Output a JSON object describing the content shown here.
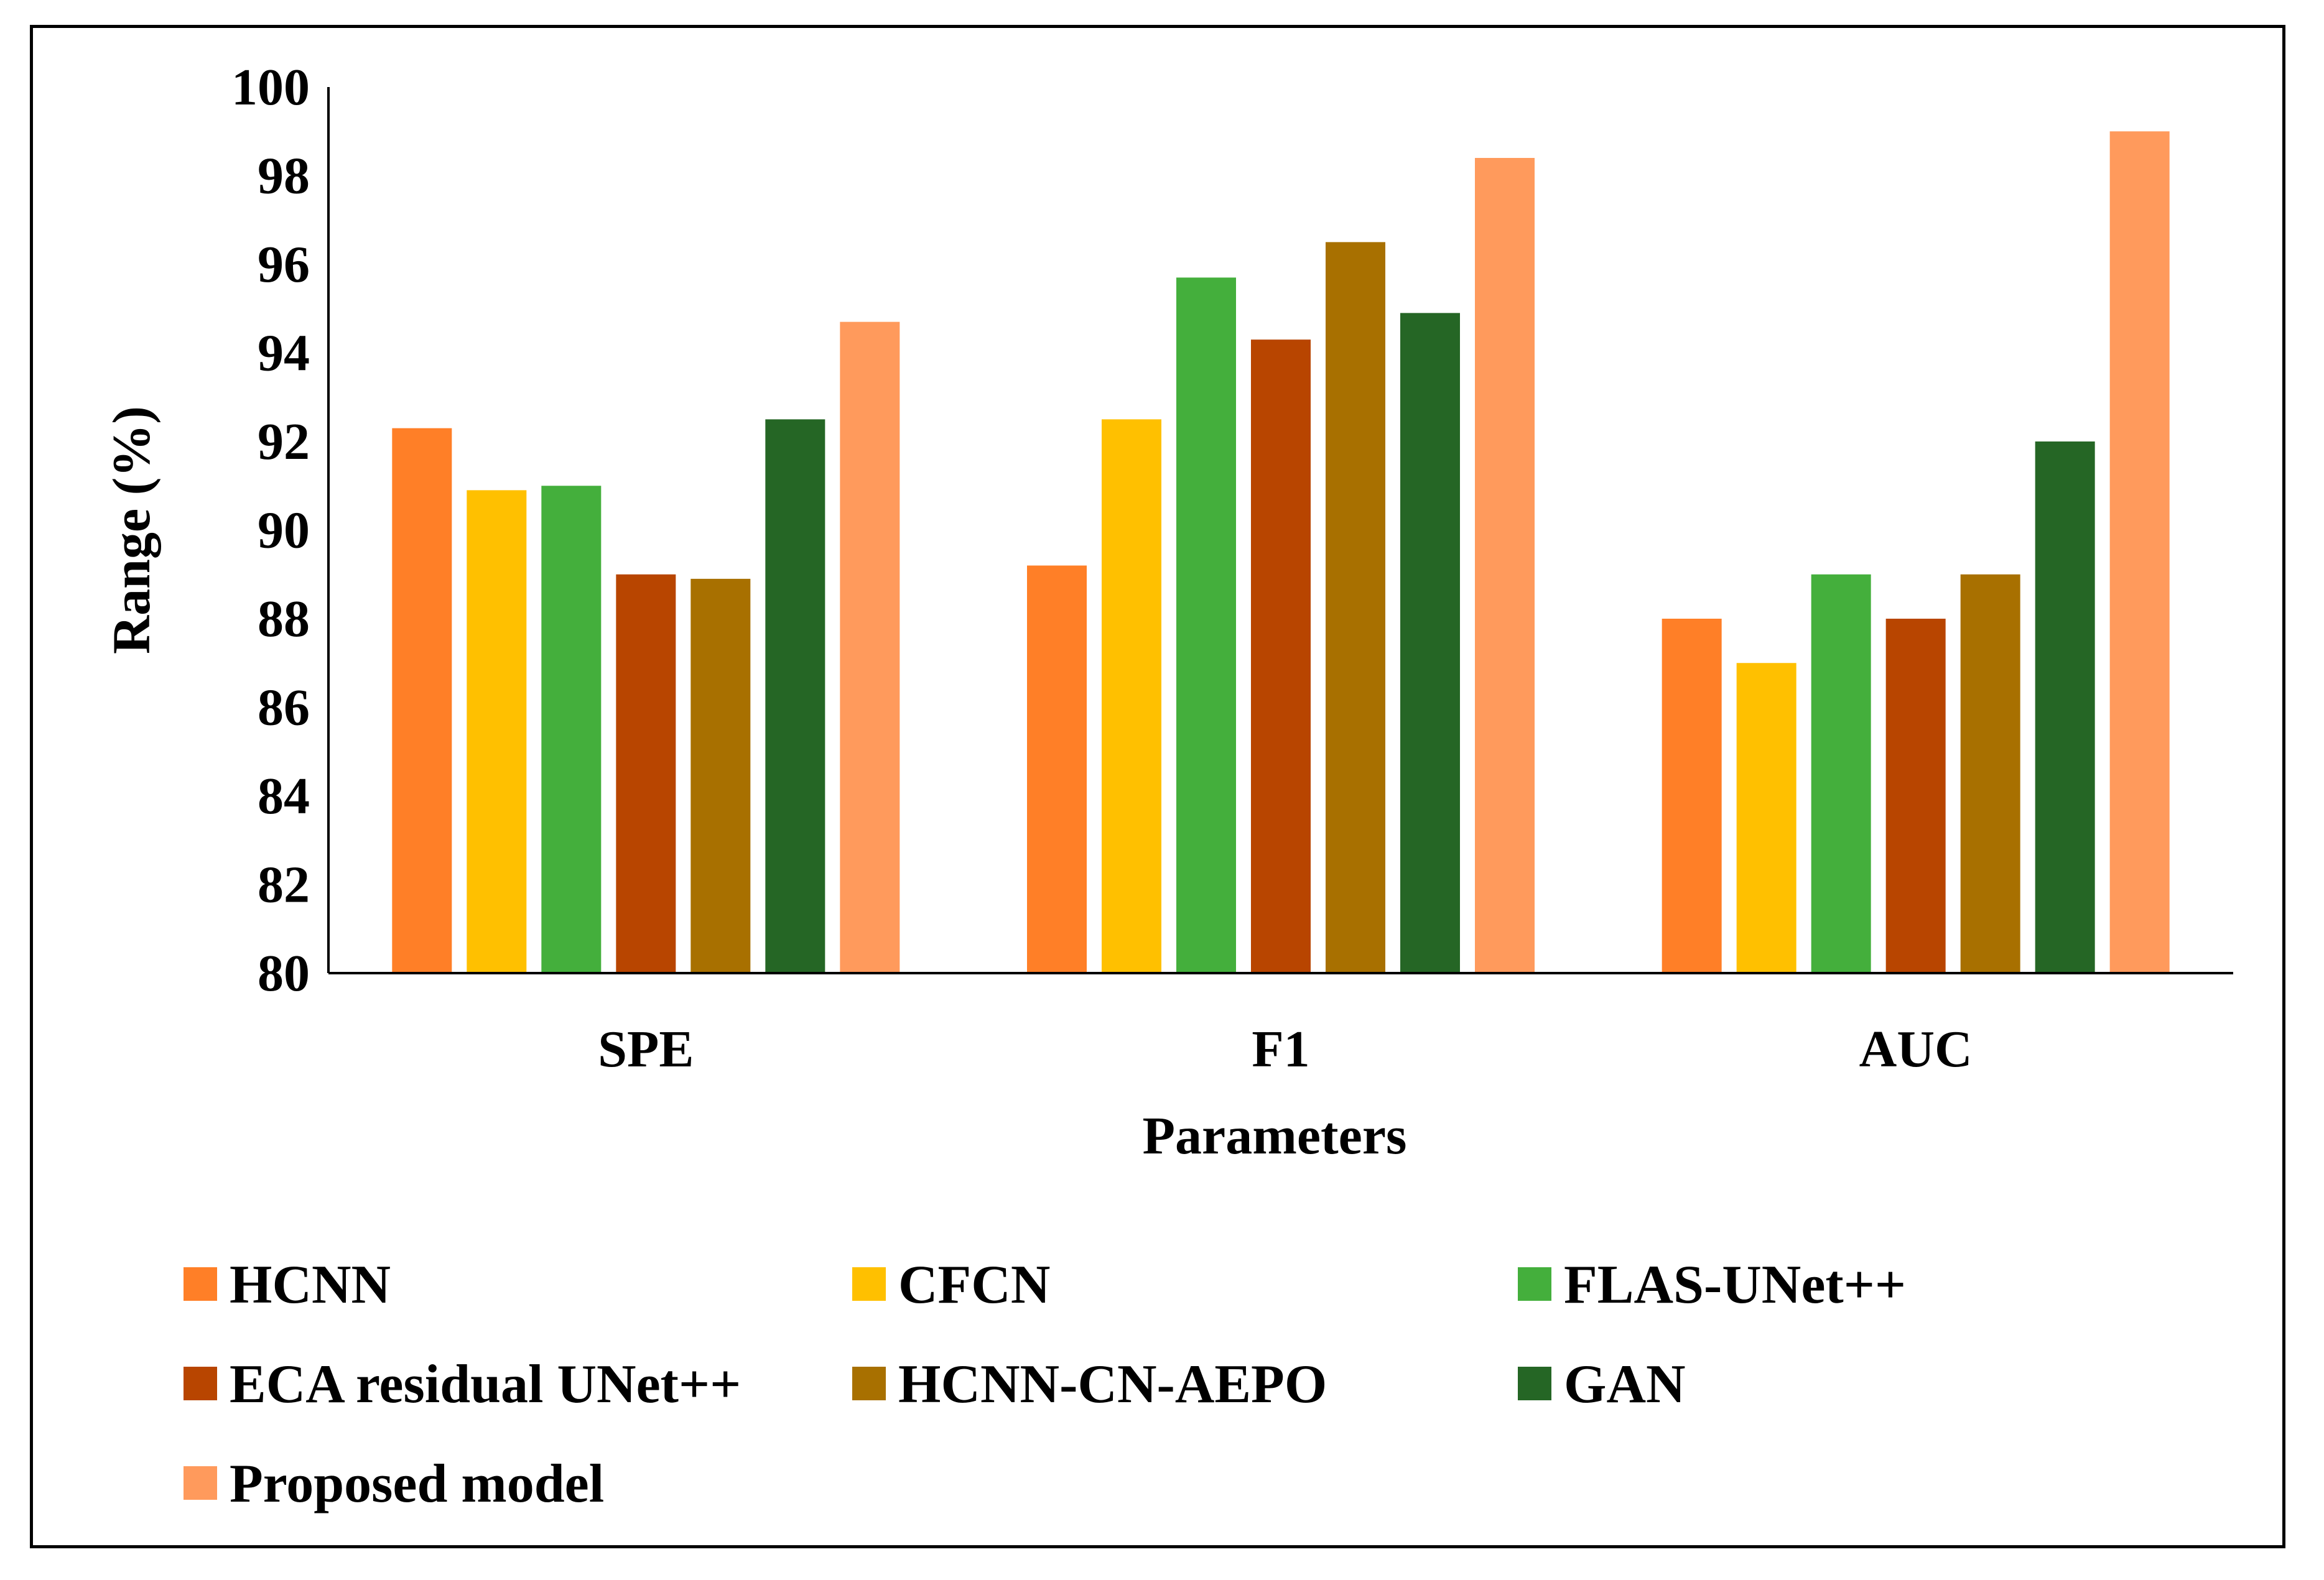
{
  "chart_data": {
    "type": "bar",
    "title": "",
    "xlabel": "Parameters",
    "ylabel": "Range (%)",
    "ylim": [
      80,
      100
    ],
    "ytick_step": 2,
    "grid": false,
    "legend_position": "bottom",
    "categories": [
      "SPE",
      "F1",
      "AUC"
    ],
    "series": [
      {
        "name": "HCNN",
        "color": "#FF7F27",
        "values": [
          92.3,
          89.2,
          88.0
        ]
      },
      {
        "name": "CFCN",
        "color": "#FFC000",
        "values": [
          90.9,
          92.5,
          87.0
        ]
      },
      {
        "name": "FLAS-UNet++",
        "color": "#44AF3C",
        "values": [
          91.0,
          95.7,
          89.0
        ]
      },
      {
        "name": "ECA residual UNet++",
        "color": "#B84500",
        "values": [
          89.0,
          94.3,
          88.0
        ]
      },
      {
        "name": "HCNN-CN-AEPO",
        "color": "#A87000",
        "values": [
          88.9,
          96.5,
          89.0
        ]
      },
      {
        "name": "GAN",
        "color": "#256625",
        "values": [
          92.5,
          94.9,
          92.0
        ]
      },
      {
        "name": "Proposed model",
        "color": "#FF9A5C",
        "values": [
          94.7,
          98.4,
          99.0
        ]
      }
    ]
  }
}
